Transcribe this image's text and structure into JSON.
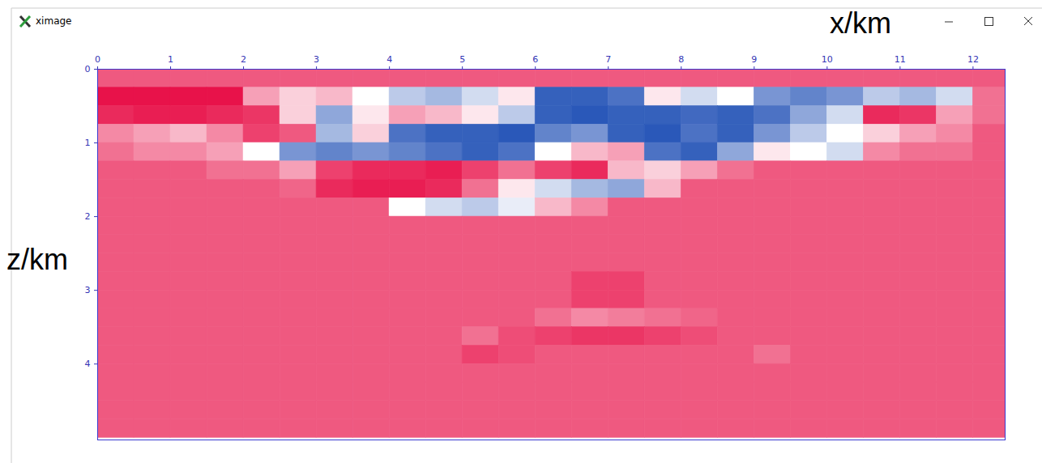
{
  "chart_data": {
    "type": "heatmap",
    "title": "ximage",
    "x_label": "x/km",
    "y_label": "z/km",
    "xlim": [
      0,
      12.44
    ],
    "ylim": [
      0,
      5.03
    ],
    "xticks": [
      0,
      1,
      2,
      3,
      4,
      5,
      6,
      7,
      8,
      9,
      10,
      11,
      12
    ],
    "yticks": [
      0,
      1,
      2,
      3,
      4
    ],
    "clim": [
      -1,
      1
    ],
    "x": [
      0.25,
      0.75,
      1.25,
      1.75,
      2.25,
      2.75,
      3.25,
      3.75,
      4.25,
      4.75,
      5.25,
      5.75,
      6.25,
      6.75,
      7.25,
      7.75,
      8.25,
      8.75,
      9.25,
      9.75,
      10.25,
      10.75,
      11.25,
      11.75,
      12.25
    ],
    "y": [
      0.125,
      0.375,
      0.625,
      0.875,
      1.125,
      1.375,
      1.625,
      1.875,
      2.125,
      2.375,
      2.625,
      2.875,
      3.125,
      3.375,
      3.625,
      3.875,
      4.125,
      4.375,
      4.625,
      4.875
    ],
    "cells": [
      [
        0.7,
        0.7,
        0.7,
        0.7,
        0.7,
        0.7,
        0.7,
        0.7,
        0.7,
        0.7,
        0.7,
        0.7,
        0.7,
        0.7,
        0.7,
        0.7,
        0.7,
        0.7,
        0.7,
        0.7,
        0.7,
        0.7,
        0.7,
        0.7,
        0.7
      ],
      [
        1.0,
        1.0,
        1.0,
        1.0,
        0.4,
        0.2,
        0.3,
        0.0,
        -0.3,
        -0.4,
        -0.2,
        0.1,
        -0.9,
        -0.9,
        -0.8,
        0.1,
        -0.2,
        0.0,
        -0.6,
        -0.7,
        -0.6,
        -0.3,
        -0.4,
        -0.2,
        0.6
      ],
      [
        0.9,
        0.95,
        0.95,
        0.9,
        0.85,
        0.2,
        -0.5,
        0.1,
        0.4,
        0.3,
        0.1,
        -0.3,
        -0.9,
        -0.95,
        -0.9,
        -0.9,
        -0.85,
        -0.9,
        -0.8,
        -0.5,
        -0.2,
        0.9,
        0.85,
        0.4,
        0.6
      ],
      [
        0.5,
        0.4,
        0.3,
        0.5,
        0.8,
        0.7,
        -0.4,
        0.2,
        -0.8,
        -0.9,
        -0.9,
        -0.95,
        -0.7,
        -0.6,
        -0.9,
        -0.95,
        -0.8,
        -0.9,
        -0.6,
        -0.3,
        0.0,
        0.2,
        0.4,
        0.5,
        0.7
      ],
      [
        0.6,
        0.5,
        0.5,
        0.4,
        0.0,
        -0.6,
        -0.7,
        -0.6,
        -0.7,
        -0.8,
        -0.9,
        -0.8,
        0.0,
        0.3,
        0.4,
        -0.8,
        -0.9,
        -0.5,
        0.1,
        0.0,
        -0.2,
        0.5,
        0.6,
        0.6,
        0.7
      ],
      [
        0.7,
        0.7,
        0.7,
        0.6,
        0.6,
        0.4,
        0.8,
        0.9,
        0.9,
        0.95,
        0.8,
        0.6,
        0.8,
        0.9,
        0.3,
        0.2,
        0.4,
        0.6,
        0.7,
        0.7,
        0.7,
        0.7,
        0.7,
        0.7,
        0.7
      ],
      [
        0.7,
        0.7,
        0.7,
        0.7,
        0.7,
        0.65,
        0.9,
        0.95,
        0.95,
        0.9,
        0.6,
        0.1,
        -0.2,
        -0.4,
        -0.5,
        0.3,
        0.7,
        0.7,
        0.7,
        0.7,
        0.7,
        0.7,
        0.7,
        0.7,
        0.7
      ],
      [
        0.7,
        0.7,
        0.7,
        0.7,
        0.7,
        0.7,
        0.7,
        0.7,
        0.0,
        -0.2,
        -0.3,
        -0.1,
        0.3,
        0.5,
        0.7,
        0.7,
        0.7,
        0.7,
        0.7,
        0.7,
        0.7,
        0.7,
        0.7,
        0.7,
        0.7
      ],
      [
        0.7,
        0.7,
        0.7,
        0.7,
        0.7,
        0.7,
        0.7,
        0.7,
        0.7,
        0.7,
        0.7,
        0.7,
        0.7,
        0.7,
        0.7,
        0.7,
        0.7,
        0.7,
        0.7,
        0.7,
        0.7,
        0.7,
        0.7,
        0.7,
        0.7
      ],
      [
        0.7,
        0.7,
        0.7,
        0.7,
        0.7,
        0.7,
        0.7,
        0.7,
        0.7,
        0.7,
        0.7,
        0.7,
        0.7,
        0.7,
        0.7,
        0.7,
        0.7,
        0.7,
        0.7,
        0.7,
        0.7,
        0.7,
        0.7,
        0.7,
        0.7
      ],
      [
        0.7,
        0.7,
        0.7,
        0.7,
        0.7,
        0.7,
        0.7,
        0.7,
        0.7,
        0.7,
        0.7,
        0.7,
        0.7,
        0.7,
        0.7,
        0.7,
        0.7,
        0.7,
        0.7,
        0.7,
        0.7,
        0.7,
        0.7,
        0.7,
        0.7
      ],
      [
        0.7,
        0.7,
        0.7,
        0.7,
        0.7,
        0.7,
        0.7,
        0.7,
        0.7,
        0.7,
        0.7,
        0.7,
        0.7,
        0.8,
        0.8,
        0.7,
        0.7,
        0.7,
        0.7,
        0.7,
        0.7,
        0.7,
        0.7,
        0.7,
        0.7
      ],
      [
        0.7,
        0.7,
        0.7,
        0.7,
        0.7,
        0.7,
        0.7,
        0.7,
        0.7,
        0.7,
        0.7,
        0.7,
        0.7,
        0.8,
        0.8,
        0.7,
        0.7,
        0.7,
        0.7,
        0.7,
        0.7,
        0.7,
        0.7,
        0.7,
        0.7
      ],
      [
        0.7,
        0.7,
        0.7,
        0.7,
        0.7,
        0.7,
        0.7,
        0.7,
        0.7,
        0.7,
        0.7,
        0.7,
        0.6,
        0.5,
        0.55,
        0.6,
        0.65,
        0.7,
        0.7,
        0.7,
        0.7,
        0.7,
        0.7,
        0.7,
        0.7
      ],
      [
        0.7,
        0.7,
        0.7,
        0.7,
        0.7,
        0.7,
        0.7,
        0.7,
        0.7,
        0.7,
        0.6,
        0.75,
        0.8,
        0.85,
        0.85,
        0.8,
        0.75,
        0.7,
        0.7,
        0.7,
        0.7,
        0.7,
        0.7,
        0.7,
        0.7
      ],
      [
        0.7,
        0.7,
        0.7,
        0.7,
        0.7,
        0.7,
        0.7,
        0.7,
        0.7,
        0.7,
        0.8,
        0.75,
        0.7,
        0.7,
        0.7,
        0.7,
        0.7,
        0.7,
        0.6,
        0.7,
        0.7,
        0.7,
        0.7,
        0.7,
        0.7
      ],
      [
        0.7,
        0.7,
        0.7,
        0.7,
        0.7,
        0.7,
        0.7,
        0.7,
        0.7,
        0.7,
        0.7,
        0.7,
        0.7,
        0.7,
        0.7,
        0.7,
        0.7,
        0.7,
        0.7,
        0.7,
        0.7,
        0.7,
        0.7,
        0.7,
        0.7
      ],
      [
        0.7,
        0.7,
        0.7,
        0.7,
        0.7,
        0.7,
        0.7,
        0.7,
        0.7,
        0.7,
        0.7,
        0.7,
        0.7,
        0.7,
        0.7,
        0.7,
        0.7,
        0.7,
        0.7,
        0.7,
        0.7,
        0.7,
        0.7,
        0.7,
        0.7
      ],
      [
        0.7,
        0.7,
        0.7,
        0.7,
        0.7,
        0.7,
        0.7,
        0.7,
        0.7,
        0.7,
        0.7,
        0.7,
        0.7,
        0.7,
        0.7,
        0.7,
        0.7,
        0.7,
        0.7,
        0.7,
        0.7,
        0.7,
        0.7,
        0.7,
        0.7
      ],
      [
        0.7,
        0.7,
        0.7,
        0.7,
        0.7,
        0.7,
        0.7,
        0.7,
        0.7,
        0.7,
        0.7,
        0.7,
        0.7,
        0.7,
        0.7,
        0.7,
        0.7,
        0.7,
        0.7,
        0.7,
        0.7,
        0.7,
        0.7,
        0.7,
        0.7
      ]
    ]
  }
}
